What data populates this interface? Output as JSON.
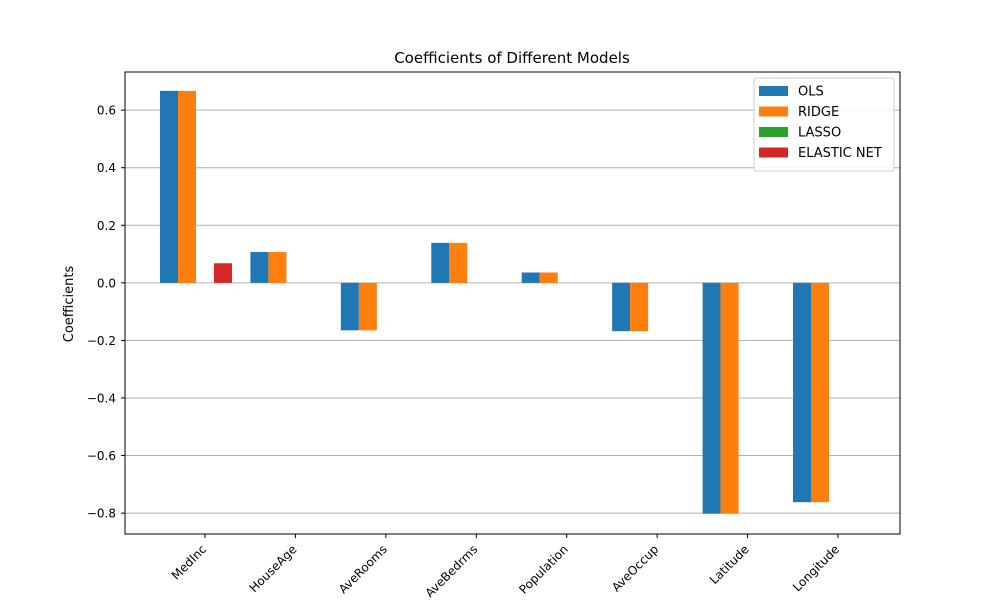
{
  "chart_data": {
    "type": "bar",
    "title": "Coefficients of Different Models",
    "xlabel": "",
    "ylabel": "Coefficients",
    "categories": [
      "MedInc",
      "HouseAge",
      "AveRooms",
      "AveBedrms",
      "Population",
      "AveOccup",
      "Latitude",
      "Longitude"
    ],
    "series": [
      {
        "name": "OLS",
        "color": "#1f77b4",
        "values": [
          0.667,
          0.107,
          -0.165,
          0.139,
          0.036,
          -0.168,
          -0.802,
          -0.762
        ]
      },
      {
        "name": "RIDGE",
        "color": "#ff7f0e",
        "values": [
          0.667,
          0.107,
          -0.165,
          0.139,
          0.036,
          -0.168,
          -0.802,
          -0.762
        ]
      },
      {
        "name": "LASSO",
        "color": "#2ca02c",
        "values": [
          0,
          0,
          0,
          0,
          0,
          0,
          0,
          0
        ]
      },
      {
        "name": "ELASTIC NET",
        "color": "#d62728",
        "values": [
          0.068,
          0,
          0,
          0,
          0,
          0,
          0,
          0
        ]
      }
    ],
    "ylim": [
      -0.8725,
      0.7325
    ],
    "yticks": [
      0.6,
      0.4,
      0.2,
      0.0,
      -0.2,
      -0.4,
      -0.6,
      -0.8
    ],
    "ytick_labels": [
      "0.6",
      "0.4",
      "0.2",
      "0.0",
      "−0.2",
      "−0.4",
      "−0.6",
      "−0.8"
    ],
    "grid": "y",
    "legend_position": "top-right",
    "xtick_rotation": 45
  }
}
